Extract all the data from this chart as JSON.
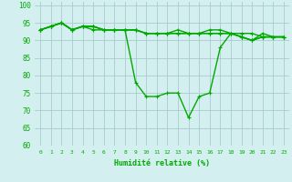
{
  "xlabel": "Humidité relative (%)",
  "bg_color": "#d4efef",
  "grid_color": "#aacccc",
  "line_color": "#00aa00",
  "markersize": 2.5,
  "linewidth": 1.0,
  "xlim": [
    -0.5,
    23.5
  ],
  "ylim": [
    60,
    101
  ],
  "yticks": [
    60,
    65,
    70,
    75,
    80,
    85,
    90,
    95,
    100
  ],
  "xticks": [
    0,
    1,
    2,
    3,
    4,
    5,
    6,
    7,
    8,
    9,
    10,
    11,
    12,
    13,
    14,
    15,
    16,
    17,
    18,
    19,
    20,
    21,
    22,
    23
  ],
  "series": [
    [
      93,
      94,
      95,
      93,
      94,
      94,
      93,
      93,
      93,
      93,
      92,
      92,
      92,
      93,
      92,
      92,
      93,
      93,
      92,
      92,
      92,
      91,
      91,
      91
    ],
    [
      93,
      94,
      95,
      93,
      94,
      94,
      93,
      93,
      93,
      93,
      92,
      92,
      92,
      92,
      92,
      92,
      92,
      92,
      92,
      91,
      90,
      91,
      91,
      91
    ],
    [
      93,
      94,
      95,
      93,
      94,
      94,
      93,
      93,
      93,
      93,
      92,
      92,
      92,
      92,
      92,
      92,
      92,
      92,
      92,
      91,
      90,
      91,
      91,
      91
    ],
    [
      93,
      94,
      95,
      93,
      94,
      93,
      93,
      93,
      93,
      78,
      74,
      74,
      75,
      75,
      68,
      74,
      75,
      88,
      92,
      91,
      90,
      92,
      91,
      91
    ]
  ]
}
